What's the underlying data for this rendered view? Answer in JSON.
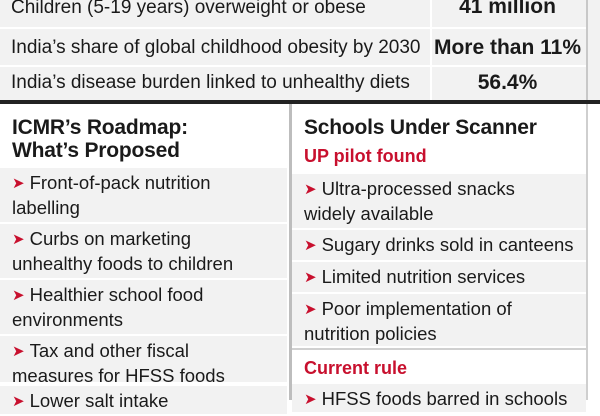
{
  "stats": [
    {
      "label": "Children (5-19 years) overweight or obese",
      "value": "41 million"
    },
    {
      "label": "India’s share of global childhood obesity by 2030",
      "value": "More than 11%"
    },
    {
      "label": "India’s disease burden linked to unhealthy diets",
      "value": "56.4%"
    }
  ],
  "left": {
    "heading_line1": "ICMR’s Roadmap:",
    "heading_line2": "What’s Proposed",
    "items": [
      {
        "line1": "Front-of-pack nutrition",
        "line2": "labelling"
      },
      {
        "line1": "Curbs on marketing",
        "line2": "unhealthy foods to children"
      },
      {
        "line1": "Healthier school food",
        "line2": "environments"
      },
      {
        "line1": "Tax and other fiscal",
        "line2": "measures for HFSS foods"
      },
      {
        "line1": "Lower salt intake",
        "line2": ""
      }
    ]
  },
  "right": {
    "heading": "Schools Under Scanner",
    "sub_heading_1": "UP pilot found",
    "items": [
      {
        "line1": "Ultra-processed snacks",
        "line2": "widely available"
      },
      {
        "line1": "Sugary drinks sold in canteens",
        "line2": ""
      },
      {
        "line1": "Limited nutrition services",
        "line2": ""
      },
      {
        "line1": "Poor implementation of",
        "line2": "nutrition policies"
      }
    ],
    "sub_heading_2": "Current rule",
    "rule_item": {
      "line1": "HFSS foods barred in schools",
      "line2": ""
    }
  },
  "arrow_symbol": "➤",
  "colors": {
    "accent": "#c8102e",
    "panel": "#f2f2f2",
    "rule": "#222222"
  }
}
